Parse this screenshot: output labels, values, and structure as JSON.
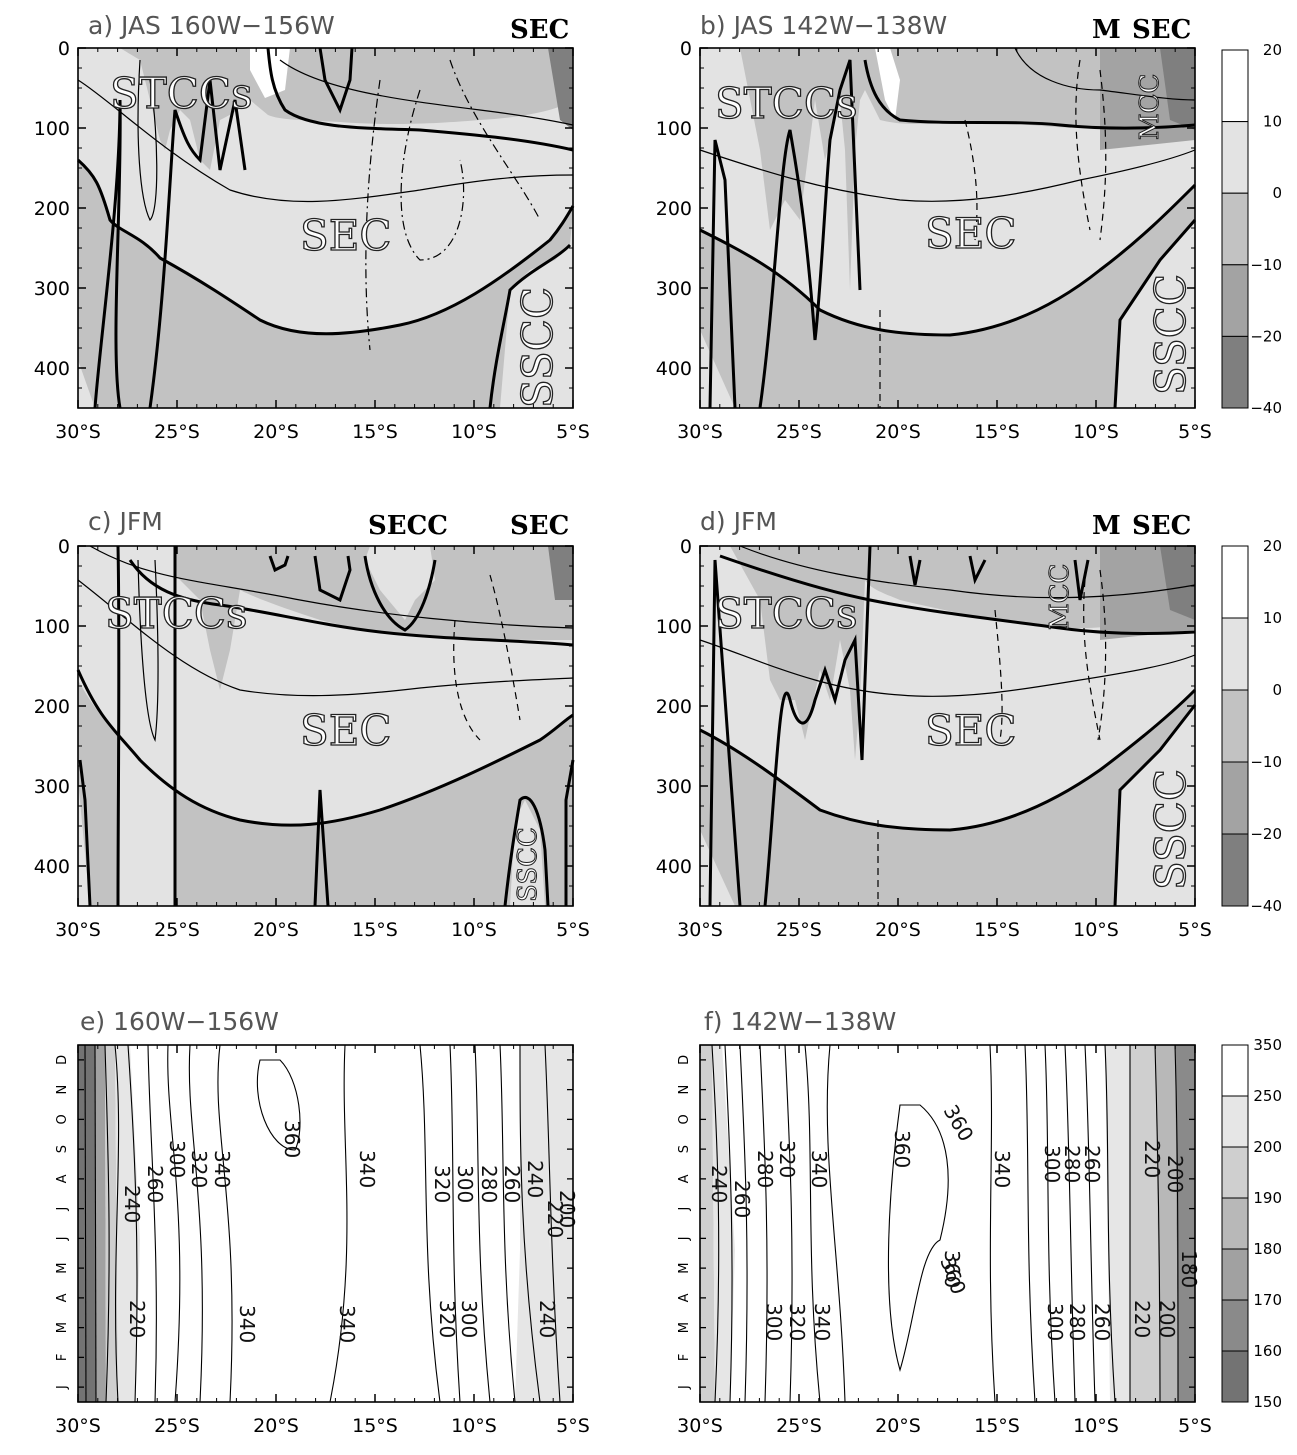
{
  "colors": {
    "lt0_20": "#e3e3e3",
    "m10_0": "#c2c2c2",
    "m20_m10": "#a3a3a3",
    "m40_m20": "#7f7f7f",
    "pos20": "#ffffff",
    "d350": "#ffffff",
    "d250_350": "#ffffff",
    "d200_250": "#e6e6e6",
    "d190_200": "#cfcfcf",
    "d180_190": "#b8b8b8",
    "d170_180": "#a1a1a1",
    "d160_170": "#8a8a8a",
    "d150_160": "#737373"
  },
  "chart_data": [
    {
      "id": "a",
      "type": "heatmap",
      "title": "a) JAS 160W−156W",
      "top_labels": [
        "SEC"
      ],
      "x_ticks": [
        "30°S",
        "25°S",
        "20°S",
        "15°S",
        "10°S",
        "5°S"
      ],
      "xlim": [
        -30,
        -5
      ],
      "y_ticks": [
        "0",
        "100",
        "200",
        "300",
        "400"
      ],
      "ylim": [
        450,
        0
      ],
      "annotations": [
        "STCCs",
        "SEC",
        "SSCC"
      ]
    },
    {
      "id": "b",
      "type": "heatmap",
      "title": "b) JAS 142W−138W",
      "top_labels": [
        "M",
        "SEC"
      ],
      "x_ticks": [
        "30°S",
        "25°S",
        "20°S",
        "15°S",
        "10°S",
        "5°S"
      ],
      "xlim": [
        -30,
        -5
      ],
      "y_ticks": [
        "0",
        "100",
        "200",
        "300",
        "400"
      ],
      "ylim": [
        450,
        0
      ],
      "annotations": [
        "STCCs",
        "SEC",
        "MCC",
        "SSCC"
      ],
      "colorbar": {
        "levels": [
          "20",
          "10",
          "0",
          "−10",
          "−20",
          "−40"
        ]
      }
    },
    {
      "id": "c",
      "type": "heatmap",
      "title": "c) JFM",
      "top_labels": [
        "SECC",
        "SEC"
      ],
      "x_ticks": [
        "30°S",
        "25°S",
        "20°S",
        "15°S",
        "10°S",
        "5°S"
      ],
      "xlim": [
        -30,
        -5
      ],
      "y_ticks": [
        "0",
        "100",
        "200",
        "300",
        "400"
      ],
      "ylim": [
        450,
        0
      ],
      "annotations": [
        "STCCs",
        "SEC",
        "SSCC"
      ]
    },
    {
      "id": "d",
      "type": "heatmap",
      "title": "d) JFM",
      "top_labels": [
        "M",
        "SEC"
      ],
      "x_ticks": [
        "30°S",
        "25°S",
        "20°S",
        "15°S",
        "10°S",
        "5°S"
      ],
      "xlim": [
        -30,
        -5
      ],
      "y_ticks": [
        "0",
        "100",
        "200",
        "300",
        "400"
      ],
      "ylim": [
        450,
        0
      ],
      "annotations": [
        "STCCs",
        "SEC",
        "MCC",
        "SSCC"
      ],
      "colorbar": {
        "levels": [
          "20",
          "10",
          "0",
          "−10",
          "−20",
          "−40"
        ]
      }
    },
    {
      "id": "e",
      "type": "heatmap",
      "title": "e) 160W−156W",
      "x_ticks": [
        "30°S",
        "25°S",
        "20°S",
        "15°S",
        "10°S",
        "5°S"
      ],
      "xlim": [
        -30,
        -5
      ],
      "y_ticks": [
        "J",
        "F",
        "M",
        "A",
        "M",
        "J",
        "J",
        "A",
        "S",
        "O",
        "N",
        "D"
      ],
      "contour_labels": [
        "240",
        "260",
        "300",
        "320",
        "340",
        "360",
        "340",
        "320",
        "300",
        "280",
        "260",
        "240",
        "220",
        "200",
        "220",
        "340",
        "340",
        "320",
        "300",
        "240"
      ]
    },
    {
      "id": "f",
      "type": "heatmap",
      "title": "f) 142W−138W",
      "x_ticks": [
        "30°S",
        "25°S",
        "20°S",
        "15°S",
        "10°S",
        "5°S"
      ],
      "xlim": [
        -30,
        -5
      ],
      "y_ticks": [
        "J",
        "F",
        "M",
        "A",
        "M",
        "J",
        "J",
        "A",
        "S",
        "O",
        "N",
        "D"
      ],
      "contour_labels": [
        "240",
        "260",
        "280",
        "320",
        "340",
        "360",
        "360",
        "340",
        "300",
        "280",
        "260",
        "220",
        "200",
        "180",
        "360",
        "360",
        "300",
        "320",
        "340",
        "300",
        "280",
        "260",
        "220",
        "200"
      ],
      "colorbar": {
        "levels": [
          "350",
          "250",
          "200",
          "190",
          "180",
          "170",
          "160",
          "150"
        ]
      }
    }
  ]
}
